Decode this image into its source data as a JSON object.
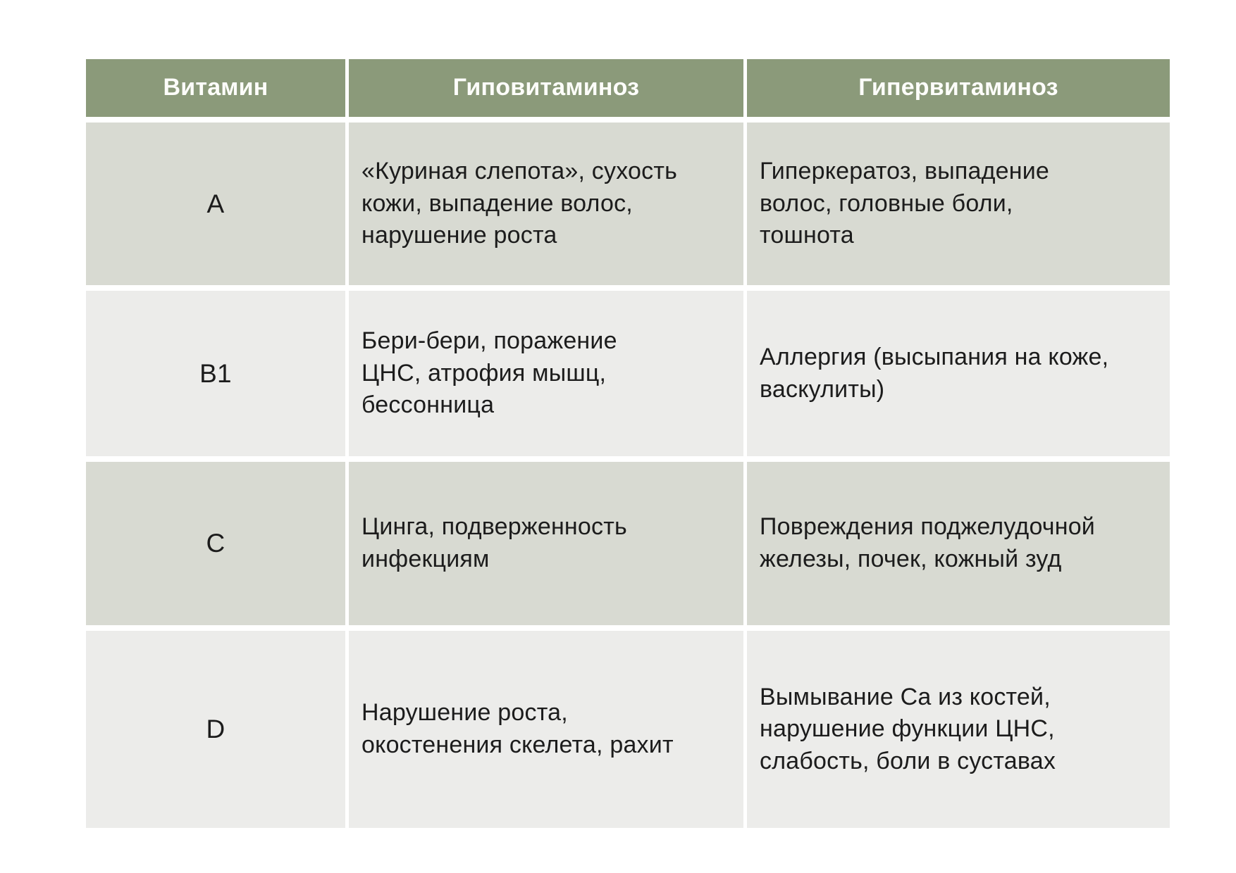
{
  "colors": {
    "page_bg": "#ffffff",
    "header_bg": "#8b9a7a",
    "header_text": "#fdfdfa",
    "row_band_dark": "#d8dad2",
    "row_band_light": "#ececea",
    "body_text": "#1c1c1c"
  },
  "table": {
    "columns": {
      "vitamin": "Витамин",
      "hypo": "Гиповитаминоз",
      "hyper": "Гипервитаминоз"
    },
    "rows": [
      {
        "vitamin": "A",
        "hypo": "«Куриная слепота», сухость\nкожи, выпадение волос,\nнарушение роста",
        "hyper": "Гиперкератоз, выпадение\nволос, головные боли,\nтошнота"
      },
      {
        "vitamin": "B1",
        "hypo": "Бери-бери, поражение\nЦНС, атрофия мышц,\nбессонница",
        "hyper": "Аллергия (высыпания на коже,\nваскулиты)"
      },
      {
        "vitamin": "C",
        "hypo": "Цинга, подверженность\nинфекциям",
        "hyper": "Повреждения поджелудочной\nжелезы, почек, кожный зуд"
      },
      {
        "vitamin": "D",
        "hypo": "Нарушение роста,\nокостенения скелета, рахит",
        "hyper": "Вымывание Ca из костей,\nнарушение функции ЦНС,\nслабость, боли в суставах"
      }
    ]
  }
}
